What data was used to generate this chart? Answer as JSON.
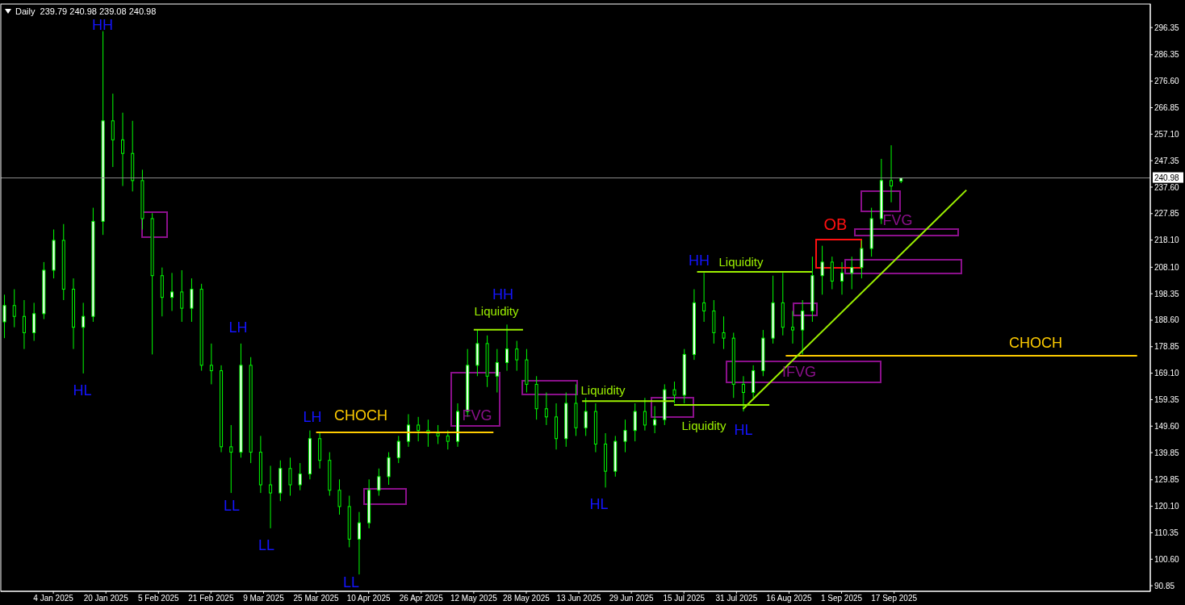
{
  "chart_data": {
    "type": "candlestick",
    "title": "Daily  239.79 240.98 239.08 240.98",
    "color": "#00ff00",
    "x": [
      "2024-12-20",
      "2024-12-23",
      "2024-12-26",
      "2024-12-29",
      "2025-01-01",
      "2025-01-04",
      "2025-01-07",
      "2025-01-10",
      "2025-01-13",
      "2025-01-16",
      "2025-01-19",
      "2025-01-22",
      "2025-01-25",
      "2025-01-28",
      "2025-01-31",
      "2025-02-03",
      "2025-02-06",
      "2025-02-09",
      "2025-02-12",
      "2025-02-15",
      "2025-02-18",
      "2025-02-21",
      "2025-02-24",
      "2025-02-27",
      "2025-03-02",
      "2025-03-05",
      "2025-03-08",
      "2025-03-11",
      "2025-03-14",
      "2025-03-17",
      "2025-03-20",
      "2025-03-23",
      "2025-03-26",
      "2025-03-29",
      "2025-04-01",
      "2025-04-04",
      "2025-04-07",
      "2025-04-10",
      "2025-04-13",
      "2025-04-16",
      "2025-04-19",
      "2025-04-22",
      "2025-04-25",
      "2025-04-28",
      "2025-05-01",
      "2025-05-04",
      "2025-05-07",
      "2025-05-10",
      "2025-05-13",
      "2025-05-16",
      "2025-05-19",
      "2025-05-22",
      "2025-05-25",
      "2025-05-28",
      "2025-05-31",
      "2025-06-03",
      "2025-06-06",
      "2025-06-09",
      "2025-06-12",
      "2025-06-15",
      "2025-06-18",
      "2025-06-21",
      "2025-06-24",
      "2025-06-27",
      "2025-06-30",
      "2025-07-03",
      "2025-07-06",
      "2025-07-09",
      "2025-07-12",
      "2025-07-15",
      "2025-07-18",
      "2025-07-21",
      "2025-07-24",
      "2025-07-27",
      "2025-07-30",
      "2025-08-02",
      "2025-08-05",
      "2025-08-08",
      "2025-08-11",
      "2025-08-14",
      "2025-08-17",
      "2025-08-20",
      "2025-08-23",
      "2025-08-26",
      "2025-08-29",
      "2025-09-01",
      "2025-09-04",
      "2025-09-07",
      "2025-09-10",
      "2025-09-13",
      "2025-09-16",
      "2025-09-19"
    ],
    "ohlc": [
      [
        188,
        198,
        182,
        194
      ],
      [
        194,
        200,
        186,
        190
      ],
      [
        190,
        196,
        178,
        184
      ],
      [
        184,
        195,
        181,
        191
      ],
      [
        191,
        210,
        189,
        207
      ],
      [
        207,
        222,
        204,
        218
      ],
      [
        218,
        224,
        196,
        200
      ],
      [
        200,
        204,
        178,
        186
      ],
      [
        186,
        195,
        169,
        190
      ],
      [
        190,
        230,
        188,
        225
      ],
      [
        225,
        295,
        220,
        262
      ],
      [
        262,
        272,
        245,
        255
      ],
      [
        255,
        265,
        238,
        250
      ],
      [
        250,
        262,
        236,
        240
      ],
      [
        240,
        244,
        222,
        226
      ],
      [
        226,
        228,
        176,
        205
      ],
      [
        205,
        208,
        190,
        197
      ],
      [
        197,
        206,
        192,
        199
      ],
      [
        199,
        207,
        188,
        193
      ],
      [
        193,
        204,
        188,
        200
      ],
      [
        200,
        202,
        170,
        172
      ],
      [
        172,
        180,
        165,
        170
      ],
      [
        170,
        172,
        140,
        142
      ],
      [
        142,
        150,
        125,
        140
      ],
      [
        140,
        180,
        138,
        172
      ],
      [
        172,
        175,
        136,
        140
      ],
      [
        140,
        146,
        125,
        128
      ],
      [
        128,
        135,
        112,
        125
      ],
      [
        125,
        137,
        122,
        134
      ],
      [
        134,
        138,
        124,
        128
      ],
      [
        128,
        136,
        126,
        132
      ],
      [
        132,
        148,
        130,
        145
      ],
      [
        145,
        147,
        134,
        137
      ],
      [
        137,
        140,
        124,
        126
      ],
      [
        126,
        130,
        117,
        120
      ],
      [
        120,
        124,
        105,
        108
      ],
      [
        108,
        118,
        95,
        114
      ],
      [
        114,
        130,
        112,
        126
      ],
      [
        126,
        134,
        124,
        131
      ],
      [
        131,
        140,
        128,
        138
      ],
      [
        138,
        146,
        136,
        144
      ],
      [
        144,
        154,
        142,
        150
      ],
      [
        150,
        153,
        144,
        148
      ],
      [
        148,
        152,
        142,
        147
      ],
      [
        147,
        150,
        143,
        146
      ],
      [
        146,
        148,
        141,
        144
      ],
      [
        144,
        158,
        142,
        155
      ],
      [
        155,
        178,
        153,
        172
      ],
      [
        172,
        185,
        168,
        180
      ],
      [
        180,
        183,
        164,
        168
      ],
      [
        168,
        178,
        162,
        173
      ],
      [
        173,
        187,
        170,
        178
      ],
      [
        178,
        181,
        170,
        174
      ],
      [
        174,
        178,
        162,
        165
      ],
      [
        165,
        168,
        152,
        156
      ],
      [
        156,
        162,
        150,
        153
      ],
      [
        153,
        158,
        141,
        145
      ],
      [
        145,
        162,
        142,
        158
      ],
      [
        158,
        165,
        146,
        149
      ],
      [
        149,
        160,
        146,
        155
      ],
      [
        155,
        158,
        140,
        143
      ],
      [
        143,
        147,
        127,
        133
      ],
      [
        133,
        146,
        131,
        144
      ],
      [
        144,
        152,
        140,
        148
      ],
      [
        148,
        158,
        144,
        155
      ],
      [
        155,
        160,
        148,
        150
      ],
      [
        150,
        157,
        147,
        152
      ],
      [
        152,
        165,
        150,
        163
      ],
      [
        163,
        166,
        158,
        161
      ],
      [
        161,
        178,
        158,
        176
      ],
      [
        176,
        200,
        174,
        195
      ],
      [
        195,
        206,
        188,
        192
      ],
      [
        192,
        196,
        180,
        184
      ],
      [
        184,
        190,
        178,
        182
      ],
      [
        182,
        184,
        160,
        165
      ],
      [
        165,
        168,
        155,
        162
      ],
      [
        162,
        172,
        160,
        170
      ],
      [
        170,
        185,
        168,
        182
      ],
      [
        182,
        205,
        180,
        195
      ],
      [
        195,
        206,
        183,
        186
      ],
      [
        186,
        192,
        180,
        185
      ],
      [
        185,
        196,
        176,
        192
      ],
      [
        192,
        212,
        188,
        205
      ],
      [
        205,
        216,
        198,
        210
      ],
      [
        210,
        212,
        200,
        203
      ],
      [
        203,
        210,
        198,
        206
      ],
      [
        206,
        212,
        200,
        208
      ],
      [
        208,
        218,
        204,
        215
      ],
      [
        215,
        230,
        212,
        226
      ],
      [
        226,
        248,
        224,
        240
      ],
      [
        240,
        253,
        232,
        238
      ],
      [
        239.79,
        240.98,
        239.08,
        240.98
      ]
    ],
    "series": [
      {
        "type": "line",
        "color": "#ffcc00",
        "x": [
          "2025-03-25",
          "2025-05-18"
        ],
        "values": [
          147.3,
          147.3
        ]
      },
      {
        "type": "line",
        "color": "#ffcc00",
        "x": [
          "2025-08-15",
          "2025-11-30"
        ],
        "values": [
          175.5,
          175.5
        ]
      },
      {
        "type": "line",
        "color": "#9cf000",
        "x": [
          "2025-05-12",
          "2025-05-27"
        ],
        "values": [
          185.1,
          185.1
        ]
      },
      {
        "type": "line",
        "color": "#9cf000",
        "x": [
          "2025-06-14",
          "2025-07-12"
        ],
        "values": [
          158.8,
          158.8
        ]
      },
      {
        "type": "line",
        "color": "#9cf000",
        "x": [
          "2025-07-12",
          "2025-08-10"
        ],
        "values": [
          157.4,
          157.4
        ]
      },
      {
        "type": "line",
        "color": "#9cf000",
        "x": [
          "2025-07-19",
          "2025-08-23"
        ],
        "values": [
          206.4,
          206.4
        ]
      },
      {
        "type": "line",
        "color": "#9cf000",
        "x": [
          "2025-08-02",
          "2025-10-09"
        ],
        "values": [
          155.9,
          236.5
        ]
      }
    ],
    "annotations": [
      "HH",
      "HL",
      "LH",
      "LL",
      "LL",
      "LH",
      "CHOCH",
      "LL",
      "FVG",
      "HH",
      "Liquidity",
      "Liquidity",
      "HL",
      "Liquidity",
      "HL",
      "HH",
      "Liquidity",
      "IFVG",
      "OB",
      "FVG",
      "CHOCH"
    ],
    "xlim": [
      "2024-12-19",
      "2025-12-04"
    ],
    "xticks": [
      {
        "value": "2025-01-04",
        "label": "4 Jan 2025"
      },
      {
        "value": "2025-01-20",
        "label": "20 Jan 2025"
      },
      {
        "value": "2025-02-05",
        "label": "5 Feb 2025"
      },
      {
        "value": "2025-02-21",
        "label": "21 Feb 2025"
      },
      {
        "value": "2025-03-09",
        "label": "9 Mar 2025"
      },
      {
        "value": "2025-03-25",
        "label": "25 Mar 2025"
      },
      {
        "value": "2025-04-10",
        "label": "10 Apr 2025"
      },
      {
        "value": "2025-04-26",
        "label": "26 Apr 2025"
      },
      {
        "value": "2025-05-12",
        "label": "12 May 2025"
      },
      {
        "value": "2025-05-28",
        "label": "28 May 2025"
      },
      {
        "value": "2025-06-13",
        "label": "13 Jun 2025"
      },
      {
        "value": "2025-06-29",
        "label": "29 Jun 2025"
      },
      {
        "value": "2025-07-15",
        "label": "15 Jul 2025"
      },
      {
        "value": "2025-07-31",
        "label": "31 Jul 2025"
      },
      {
        "value": "2025-08-16",
        "label": "16 Aug 2025"
      },
      {
        "value": "2025-09-01",
        "label": "1 Sep 2025"
      },
      {
        "value": "2025-09-17",
        "label": "17 Sep 2025"
      }
    ],
    "ylim": [
      88.8,
      305
    ],
    "yticks": [
      90.85,
      {
        "value": 100.6,
        "label": "100.60"
      },
      110.35,
      {
        "value": 120.1,
        "label": "120.10"
      },
      129.85,
      139.85,
      {
        "value": 149.6,
        "label": "149.60"
      },
      159.35,
      {
        "value": 169.1,
        "label": "169.10"
      },
      178.85,
      {
        "value": 188.6,
        "label": "188.60"
      },
      198.35,
      {
        "value": 208.1,
        "label": "208.10"
      },
      {
        "value": 218.1,
        "label": "218.10"
      },
      227.85,
      {
        "value": 237.6,
        "label": "237.60"
      },
      247.35,
      {
        "value": 257.1,
        "label": "257.10"
      },
      266.85,
      {
        "value": 276.6,
        "label": "276.60"
      },
      286.35,
      296.35
    ],
    "ref_lines": [
      {
        "axis": "y",
        "value": 240.98,
        "label": "240.98",
        "color": "#8c8c8c"
      }
    ]
  }
}
